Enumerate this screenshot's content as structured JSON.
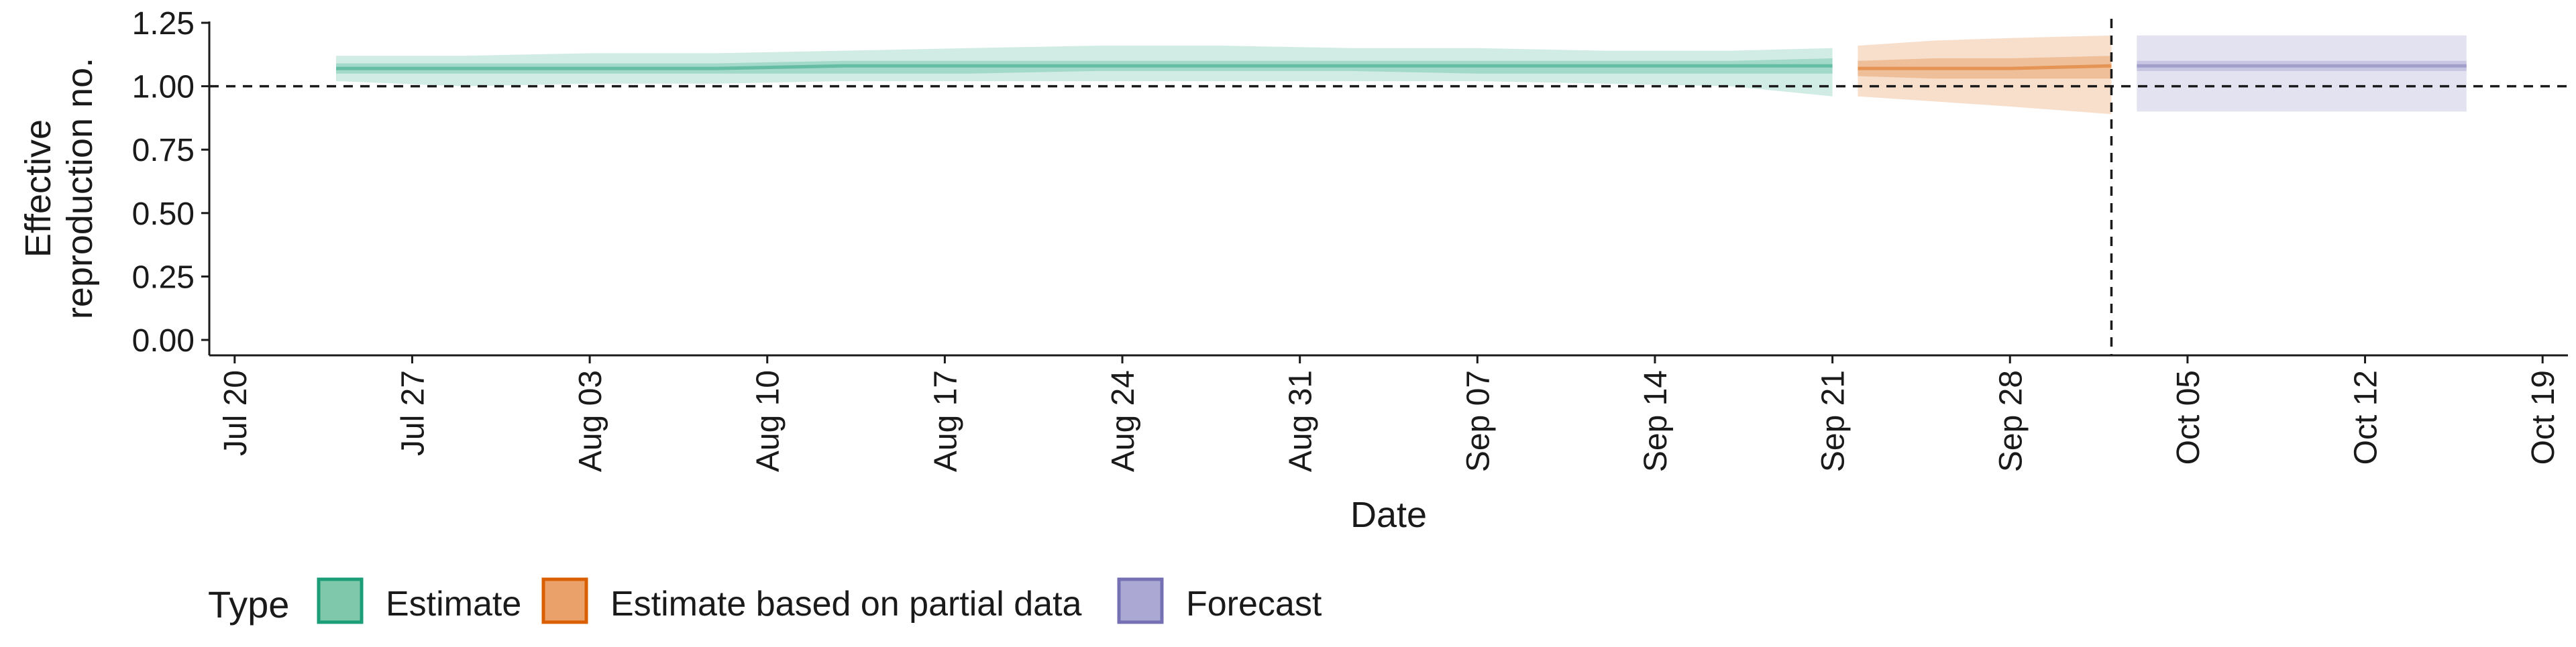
{
  "chart_data": {
    "type": "area",
    "xlabel": "Date",
    "ylabel_lines": [
      "Effective",
      "reproduction no."
    ],
    "ylim": [
      0,
      1.25
    ],
    "yticks": [
      0,
      0.25,
      0.5,
      0.75,
      1.0,
      1.25
    ],
    "ytick_labels": [
      "0.00",
      "0.25",
      "0.50",
      "0.75",
      "1.00",
      "1.25"
    ],
    "xlim": [
      "2020-07-19",
      "2020-10-20"
    ],
    "xticks": [
      "2020-07-20",
      "2020-07-27",
      "2020-08-03",
      "2020-08-10",
      "2020-08-17",
      "2020-08-24",
      "2020-08-31",
      "2020-09-07",
      "2020-09-14",
      "2020-09-21",
      "2020-09-28",
      "2020-10-05",
      "2020-10-12",
      "2020-10-19"
    ],
    "xtick_labels": [
      "Jul 20",
      "Jul 27",
      "Aug 03",
      "Aug 10",
      "Aug 17",
      "Aug 24",
      "Aug 31",
      "Sep 07",
      "Sep 14",
      "Sep 21",
      "Sep 28",
      "Oct 05",
      "Oct 12",
      "Oct 19"
    ],
    "reference_line_y": 1.0,
    "reference_line_date": "2020-10-02",
    "grid": false,
    "legend": {
      "title": "Type",
      "position": "bottom-left",
      "items": [
        {
          "label": "Estimate",
          "fill": "#7fc8ab",
          "stroke": "#1b9e77"
        },
        {
          "label": "Estimate based on partial data",
          "fill": "#eba26a",
          "stroke": "#d95f02"
        },
        {
          "label": "Forecast",
          "fill": "#aba8d4",
          "stroke": "#7570b3"
        }
      ]
    },
    "series": [
      {
        "name": "Estimate",
        "color": "#1b9e77",
        "x": [
          "2020-07-24",
          "2020-07-29",
          "2020-08-03",
          "2020-08-08",
          "2020-08-13",
          "2020-08-18",
          "2020-08-23",
          "2020-08-28",
          "2020-09-02",
          "2020-09-07",
          "2020-09-12",
          "2020-09-17",
          "2020-09-21"
        ],
        "median": [
          1.07,
          1.07,
          1.07,
          1.07,
          1.08,
          1.08,
          1.08,
          1.08,
          1.08,
          1.08,
          1.08,
          1.08,
          1.08
        ],
        "lower_50": [
          1.05,
          1.05,
          1.05,
          1.05,
          1.05,
          1.05,
          1.06,
          1.06,
          1.06,
          1.05,
          1.05,
          1.05,
          1.05
        ],
        "upper_50": [
          1.09,
          1.09,
          1.09,
          1.09,
          1.1,
          1.1,
          1.1,
          1.1,
          1.1,
          1.1,
          1.1,
          1.1,
          1.11
        ],
        "lower_90": [
          1.02,
          1.0,
          1.01,
          1.01,
          1.02,
          1.02,
          1.02,
          1.02,
          1.02,
          1.02,
          1.01,
          1.0,
          0.96
        ],
        "upper_90": [
          1.12,
          1.12,
          1.13,
          1.13,
          1.14,
          1.15,
          1.16,
          1.16,
          1.15,
          1.15,
          1.14,
          1.14,
          1.15
        ]
      },
      {
        "name": "Estimate based on partial data",
        "color": "#d95f02",
        "x": [
          "2020-09-22",
          "2020-09-25",
          "2020-09-28",
          "2020-10-02"
        ],
        "median": [
          1.07,
          1.07,
          1.07,
          1.08
        ],
        "lower_50": [
          1.04,
          1.03,
          1.03,
          1.03
        ],
        "upper_50": [
          1.1,
          1.11,
          1.11,
          1.12
        ],
        "lower_90": [
          0.96,
          0.94,
          0.92,
          0.89
        ],
        "upper_90": [
          1.16,
          1.18,
          1.19,
          1.2
        ]
      },
      {
        "name": "Forecast",
        "color": "#7570b3",
        "x": [
          "2020-10-03",
          "2020-10-16"
        ],
        "median": [
          1.08,
          1.08
        ],
        "lower_50": [
          1.06,
          1.06
        ],
        "upper_50": [
          1.1,
          1.1
        ],
        "lower_90": [
          0.9,
          0.9
        ],
        "upper_90": [
          1.2,
          1.2
        ]
      }
    ]
  }
}
